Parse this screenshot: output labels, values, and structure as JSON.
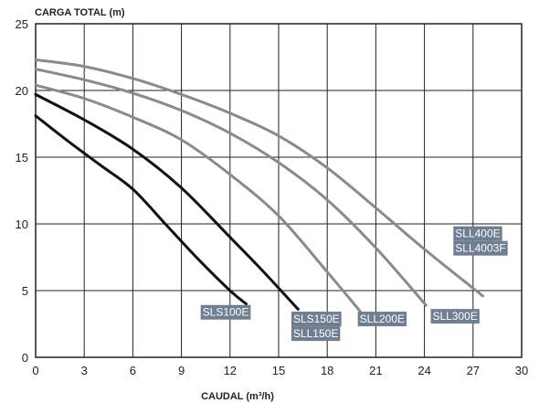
{
  "chart_data": {
    "type": "line",
    "title": "",
    "ylabel": "CARGA TOTAL (m)",
    "xlabel": "CAUDAL (m³/h)",
    "xlim": [
      0,
      30
    ],
    "ylim": [
      0,
      25
    ],
    "xticks": [
      0,
      3,
      6,
      9,
      12,
      15,
      18,
      21,
      24,
      27,
      30
    ],
    "yticks": [
      0,
      5,
      10,
      15,
      20,
      25
    ],
    "grid": true,
    "series": [
      {
        "name": "SLS100E",
        "labels": [
          "SLS100E"
        ],
        "color": "#111111",
        "x": [
          0,
          2,
          4,
          6,
          8,
          10,
          12,
          13
        ],
        "y": [
          18.1,
          16.2,
          14.4,
          12.6,
          10.0,
          7.4,
          5.0,
          4.0
        ]
      },
      {
        "name": "SLS150E / SLL150E",
        "labels": [
          "SLS150E",
          "SLL150E"
        ],
        "color": "#111111",
        "x": [
          0,
          3,
          6,
          9,
          12,
          14,
          16.2
        ],
        "y": [
          19.7,
          17.8,
          15.6,
          12.7,
          9.0,
          6.5,
          3.6
        ]
      },
      {
        "name": "SLL200E",
        "labels": [
          "SLL200E"
        ],
        "color": "#8a8a8a",
        "x": [
          0,
          3,
          6,
          9,
          12,
          15,
          18,
          20.2
        ],
        "y": [
          20.4,
          19.4,
          18.0,
          16.3,
          13.7,
          10.6,
          6.4,
          3.2
        ]
      },
      {
        "name": "SLL300E",
        "labels": [
          "SLL300E"
        ],
        "color": "#8a8a8a",
        "x": [
          0,
          3,
          6,
          9,
          12,
          15,
          18,
          21,
          24.1
        ],
        "y": [
          21.6,
          20.8,
          19.8,
          18.5,
          16.8,
          14.6,
          11.8,
          8.2,
          3.9
        ]
      },
      {
        "name": "SLL400E / SLL4003F",
        "labels": [
          "SLL400E",
          "SLL4003F"
        ],
        "color": "#8a8a8a",
        "x": [
          0,
          3,
          6,
          9,
          12,
          15,
          18,
          21,
          24,
          27.6
        ],
        "y": [
          22.3,
          21.8,
          20.9,
          19.7,
          18.3,
          16.6,
          14.2,
          11.2,
          8.1,
          4.6
        ]
      }
    ],
    "label_positions": [
      {
        "text": "SLS100E",
        "x": 10.3,
        "y": 3.1
      },
      {
        "text": "SLS150E",
        "x": 15.9,
        "y": 2.6
      },
      {
        "text": "SLL150E",
        "x": 15.9,
        "y": 1.5
      },
      {
        "text": "SLL200E",
        "x": 20.0,
        "y": 2.6
      },
      {
        "text": "SLL300E",
        "x": 24.5,
        "y": 2.8
      },
      {
        "text": "SLL400E",
        "x": 25.9,
        "y": 9.0
      },
      {
        "text": "SLL4003F",
        "x": 25.9,
        "y": 7.9
      }
    ],
    "tag_color": "#6f7f91"
  }
}
